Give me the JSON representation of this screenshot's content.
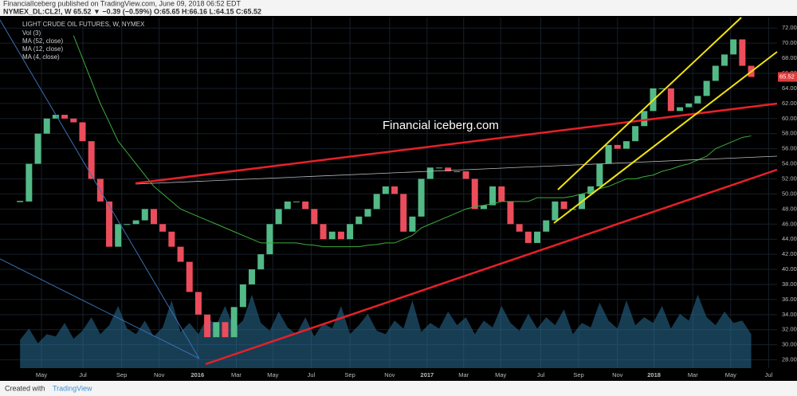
{
  "header": {
    "publisher": "FinancialIceberg published on TradingView.com, June 09, 2018 06:52 EDT",
    "quote": "NYMEX_DL:CL2!, W  65.52 ▼ −0.39 (−0.59%) O:65.65 H:66.16 L:64.15 C:65.52"
  },
  "footer": {
    "created": "Created with",
    "brand": "TradingView"
  },
  "chart_data": {
    "type": "candlestick",
    "title": "LIGHT CRUDE OIL FUTURES, W, NYMEX",
    "annotation": "Financial iceberg.com",
    "legend_extra": [
      "MA (12, close)",
      "MA (4, close)"
    ],
    "up_color": "#53b987",
    "down_color": "#eb4d5c",
    "x": [
      0,
      2,
      4,
      6,
      8,
      10,
      12,
      14,
      16,
      18,
      20,
      22,
      24,
      26,
      28,
      30,
      32,
      34,
      36,
      38,
      40,
      42,
      44,
      46,
      48,
      50,
      52,
      54,
      56,
      58,
      60,
      62,
      64,
      66,
      68,
      70,
      72,
      74,
      76,
      78,
      80,
      82,
      84,
      86,
      88,
      90,
      92,
      94,
      96,
      98,
      100,
      102,
      104,
      106,
      108,
      110,
      112,
      114,
      116,
      118,
      120,
      122,
      124,
      126,
      128,
      130,
      132,
      134,
      136,
      138,
      140,
      142,
      144,
      146,
      148,
      150,
      152,
      154,
      156,
      158,
      160,
      162,
      164
    ],
    "xlim": [
      -4.5,
      169.8
    ],
    "xticks": [
      {
        "value": 4.8,
        "label": "May"
      },
      {
        "value": 14.1,
        "label": "Jul"
      },
      {
        "value": 22.8,
        "label": "Sep"
      },
      {
        "value": 31.2,
        "label": "Nov"
      },
      {
        "value": 39.8,
        "label": "2016"
      },
      {
        "value": 48.5,
        "label": "Mar"
      },
      {
        "value": 56.7,
        "label": "May"
      },
      {
        "value": 65.3,
        "label": "Jul"
      },
      {
        "value": 74,
        "label": "Sep"
      },
      {
        "value": 82.9,
        "label": "Nov"
      },
      {
        "value": 91.3,
        "label": "2017"
      },
      {
        "value": 99.5,
        "label": "Mar"
      },
      {
        "value": 107.8,
        "label": "May"
      },
      {
        "value": 116.8,
        "label": "Jul"
      },
      {
        "value": 125.3,
        "label": "Sep"
      },
      {
        "value": 134,
        "label": "Nov"
      },
      {
        "value": 142.2,
        "label": "2018"
      },
      {
        "value": 150.9,
        "label": "Mar"
      },
      {
        "value": 159.4,
        "label": "May"
      },
      {
        "value": 167.9,
        "label": "Jul"
      }
    ],
    "ylim": [
      26.9,
      73.4
    ],
    "yticks": [
      {
        "value": 28,
        "label": "28.00"
      },
      {
        "value": 30,
        "label": "30.00"
      },
      {
        "value": 32,
        "label": "32.00"
      },
      {
        "value": 34,
        "label": "34.00"
      },
      {
        "value": 36,
        "label": "36.00"
      },
      {
        "value": 38,
        "label": "38.00"
      },
      {
        "value": 40,
        "label": "40.00"
      },
      {
        "value": 42,
        "label": "42.00"
      },
      {
        "value": 44,
        "label": "44.00"
      },
      {
        "value": 46,
        "label": "46.00"
      },
      {
        "value": 48,
        "label": "48.00"
      },
      {
        "value": 50,
        "label": "50.00"
      },
      {
        "value": 52,
        "label": "52.00"
      },
      {
        "value": 54,
        "label": "54.00"
      },
      {
        "value": 56,
        "label": "56.00"
      },
      {
        "value": 58,
        "label": "58.00"
      },
      {
        "value": 60,
        "label": "60.00"
      },
      {
        "value": 62,
        "label": "62.00"
      },
      {
        "value": 64,
        "label": "64.00"
      },
      {
        "value": 66,
        "label": "66.00"
      },
      {
        "value": 68,
        "label": "68.00"
      },
      {
        "value": 70,
        "label": "70.00"
      },
      {
        "value": 72,
        "label": "72.00"
      }
    ],
    "y2lim": [
      0,
      310
    ],
    "series": [
      {
        "name": "NYMEX_DL:CL2!, W",
        "color": "#e03c3c",
        "values": [
          49,
          54,
          58,
          60,
          60.5,
          60,
          59.5,
          57,
          52,
          49,
          43,
          46,
          46,
          46.5,
          48,
          46,
          45,
          43,
          41,
          37,
          34,
          31,
          33,
          31,
          35,
          38,
          40,
          42,
          46,
          48,
          49,
          49,
          48,
          46,
          44,
          45,
          44,
          46,
          47,
          48,
          50,
          51,
          50,
          45,
          47,
          52,
          53.5,
          53.5,
          53,
          53,
          52,
          48,
          48.5,
          51,
          49,
          46,
          45,
          43.5,
          45,
          46.5,
          49,
          48,
          48,
          50,
          51,
          54,
          56.5,
          56,
          57,
          59,
          61,
          64,
          64,
          61,
          61.5,
          62,
          63,
          65,
          67,
          68.5,
          70.5,
          67,
          65.52
        ]
      },
      {
        "name": "MA (52, close)",
        "color": "#3cae3c",
        "values": [
          null,
          null,
          null,
          null,
          null,
          null,
          71,
          68,
          65,
          62,
          59.5,
          57,
          55.5,
          54,
          52.5,
          51,
          50,
          49,
          48,
          47.5,
          47,
          46.5,
          46,
          45.5,
          45,
          44.5,
          44,
          43.5,
          43.5,
          43.5,
          43.5,
          43.5,
          43.3,
          43.2,
          43,
          43,
          43,
          43,
          43,
          43.2,
          43.3,
          43.5,
          43.5,
          44,
          44.5,
          45.5,
          46,
          46.5,
          47,
          47.5,
          48,
          48.3,
          48.5,
          48.7,
          49,
          49,
          49,
          49,
          49.5,
          49.5,
          49.5,
          49.5,
          49.7,
          50,
          50.3,
          50.7,
          51,
          51.5,
          52,
          52,
          52.3,
          52.5,
          53,
          53.3,
          53.7,
          54,
          54.5,
          55,
          56,
          56.5,
          57,
          57.5,
          57.7
        ]
      },
      {
        "name": "Vol (3)",
        "color": "#2a6f97",
        "axis": "y2",
        "values": [
          25,
          35,
          22,
          30,
          28,
          40,
          26,
          33,
          45,
          30,
          38,
          55,
          35,
          30,
          42,
          28,
          36,
          60,
          32,
          40,
          30,
          45,
          38,
          55,
          35,
          42,
          65,
          40,
          33,
          50,
          36,
          30,
          45,
          28,
          40,
          35,
          55,
          30,
          38,
          48,
          33,
          30,
          42,
          35,
          60,
          32,
          40,
          35,
          50,
          38,
          45,
          30,
          42,
          36,
          55,
          40,
          33,
          48,
          35,
          45,
          38,
          52,
          30,
          40,
          36,
          58,
          42,
          35,
          60,
          38,
          45,
          40,
          55,
          35,
          48,
          42,
          65,
          45,
          38,
          50,
          40,
          42,
          30
        ]
      }
    ]
  }
}
